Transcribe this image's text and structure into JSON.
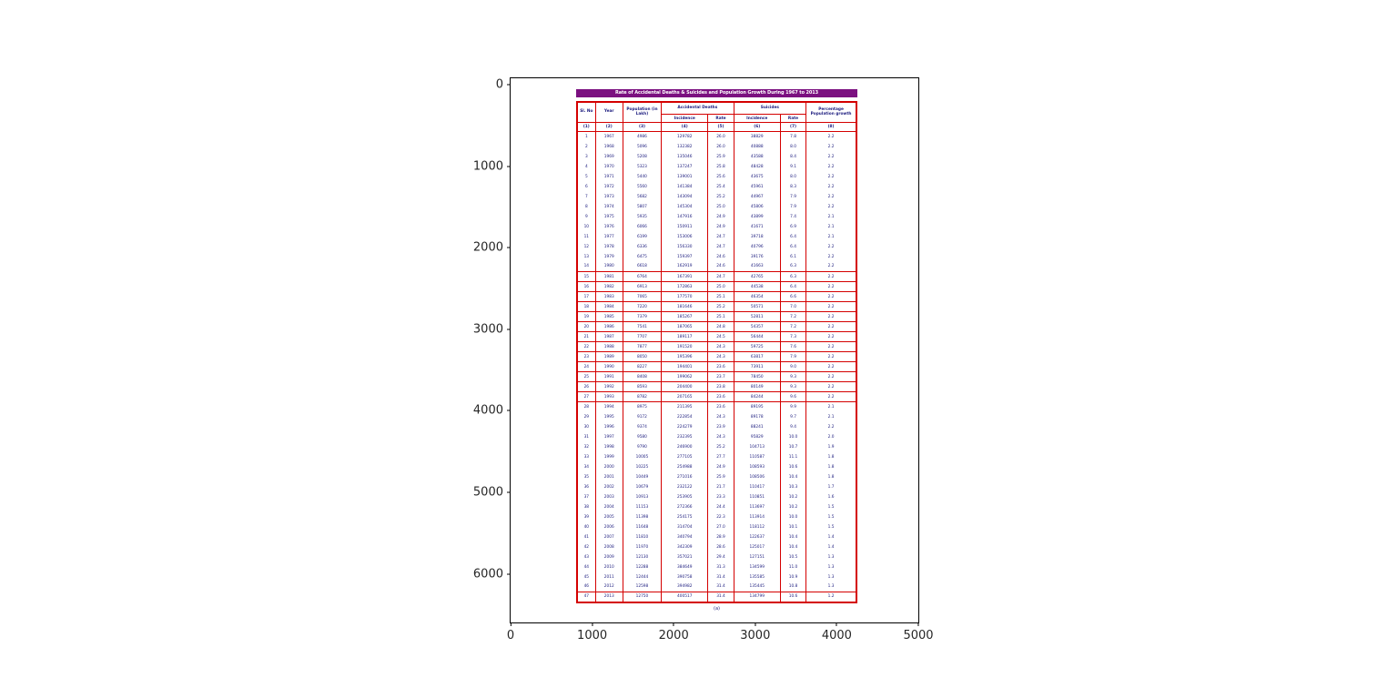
{
  "colors": {
    "table_border": "#d40000",
    "title_bar_bg": "#7b1080",
    "table_text": "#1b1b7e",
    "tick_text": "#262626"
  },
  "figure": {
    "x_ticks": [
      "0",
      "1000",
      "2000",
      "3000",
      "4000",
      "5000"
    ],
    "y_ticks": [
      "0",
      "1000",
      "2000",
      "3000",
      "4000",
      "5000",
      "6000"
    ]
  },
  "chart_data": {
    "type": "table",
    "title": "Rate of Accidental Deaths & Suicides and Population Growth During 1967 to 2013",
    "caption": "(a)",
    "header": {
      "sl_no": "Sl. No",
      "year": "Year",
      "population": "Population (in Lakh)",
      "accidental": "Accidental Deaths",
      "suicides": "Suicides",
      "growth": "Percentage Population growth",
      "incidence": "Incidence",
      "rate": "Rate"
    },
    "col_numbers": [
      "(1)",
      "(2)",
      "(3)",
      "(4)",
      "(5)",
      "(6)",
      "(7)",
      "(8)"
    ],
    "boxed_row_range": [
      15,
      27
    ],
    "x_ticks": [
      "0",
      "1000",
      "2000",
      "3000",
      "4000",
      "5000"
    ],
    "y_ticks": [
      "0",
      "1000",
      "2000",
      "3000",
      "4000",
      "5000",
      "6000"
    ],
    "rows": [
      [
        "1",
        "1967",
        "4986",
        "129782",
        "26.0",
        "38829",
        "7.8",
        "2.2"
      ],
      [
        "2",
        "1968",
        "5096",
        "132382",
        "26.0",
        "40888",
        "8.0",
        "2.2"
      ],
      [
        "3",
        "1969",
        "5208",
        "135046",
        "25.9",
        "43588",
        "8.4",
        "2.2"
      ],
      [
        "4",
        "1970",
        "5323",
        "137247",
        "25.8",
        "48428",
        "9.1",
        "2.2"
      ],
      [
        "5",
        "1971",
        "5440",
        "139001",
        "25.6",
        "43675",
        "8.0",
        "2.2"
      ],
      [
        "6",
        "1972",
        "5560",
        "141384",
        "25.4",
        "45961",
        "8.3",
        "2.2"
      ],
      [
        "7",
        "1973",
        "5682",
        "143094",
        "25.2",
        "44967",
        "7.9",
        "2.2"
      ],
      [
        "8",
        "1974",
        "5807",
        "145304",
        "25.0",
        "45806",
        "7.9",
        "2.2"
      ],
      [
        "9",
        "1975",
        "5935",
        "147916",
        "24.9",
        "43899",
        "7.4",
        "2.1"
      ],
      [
        "10",
        "1976",
        "6066",
        "150911",
        "24.9",
        "41671",
        "6.9",
        "2.1"
      ],
      [
        "11",
        "1977",
        "6199",
        "153006",
        "24.7",
        "39718",
        "6.4",
        "2.1"
      ],
      [
        "12",
        "1978",
        "6336",
        "156330",
        "24.7",
        "40796",
        "6.4",
        "2.2"
      ],
      [
        "13",
        "1979",
        "6475",
        "159397",
        "24.6",
        "39176",
        "6.1",
        "2.2"
      ],
      [
        "14",
        "1980",
        "6618",
        "162919",
        "24.6",
        "41663",
        "6.3",
        "2.2"
      ],
      [
        "15",
        "1981",
        "6764",
        "167391",
        "24.7",
        "42765",
        "6.3",
        "2.2"
      ],
      [
        "16",
        "1982",
        "6913",
        "172863",
        "25.0",
        "44538",
        "6.4",
        "2.2"
      ],
      [
        "17",
        "1983",
        "7065",
        "177570",
        "25.1",
        "46354",
        "6.6",
        "2.2"
      ],
      [
        "18",
        "1984",
        "7220",
        "181646",
        "25.2",
        "50571",
        "7.0",
        "2.2"
      ],
      [
        "19",
        "1985",
        "7379",
        "185267",
        "25.1",
        "52811",
        "7.2",
        "2.2"
      ],
      [
        "20",
        "1986",
        "7541",
        "187065",
        "24.8",
        "54357",
        "7.2",
        "2.2"
      ],
      [
        "21",
        "1987",
        "7707",
        "189117",
        "24.5",
        "56444",
        "7.3",
        "2.2"
      ],
      [
        "22",
        "1988",
        "7877",
        "191520",
        "24.3",
        "59725",
        "7.6",
        "2.2"
      ],
      [
        "23",
        "1989",
        "8050",
        "195396",
        "24.3",
        "63817",
        "7.9",
        "2.2"
      ],
      [
        "24",
        "1990",
        "8227",
        "194401",
        "23.6",
        "73911",
        "9.0",
        "2.2"
      ],
      [
        "25",
        "1991",
        "8408",
        "199062",
        "23.7",
        "78450",
        "9.3",
        "2.2"
      ],
      [
        "26",
        "1992",
        "8593",
        "204400",
        "23.8",
        "80149",
        "9.3",
        "2.2"
      ],
      [
        "27",
        "1993",
        "8782",
        "207165",
        "23.6",
        "84244",
        "9.6",
        "2.2"
      ],
      [
        "28",
        "1994",
        "8975",
        "211395",
        "23.6",
        "89195",
        "9.9",
        "2.1"
      ],
      [
        "29",
        "1995",
        "9172",
        "222854",
        "24.3",
        "89178",
        "9.7",
        "2.1"
      ],
      [
        "30",
        "1996",
        "9374",
        "224279",
        "23.9",
        "88241",
        "9.4",
        "2.2"
      ],
      [
        "31",
        "1997",
        "9580",
        "232395",
        "24.3",
        "95829",
        "10.0",
        "2.0"
      ],
      [
        "32",
        "1998",
        "9790",
        "246900",
        "25.2",
        "104713",
        "10.7",
        "1.9"
      ],
      [
        "33",
        "1999",
        "10005",
        "277105",
        "27.7",
        "110587",
        "11.1",
        "1.8"
      ],
      [
        "34",
        "2000",
        "10225",
        "254988",
        "24.9",
        "108593",
        "10.6",
        "1.8"
      ],
      [
        "35",
        "2001",
        "10449",
        "271016",
        "25.9",
        "108506",
        "10.4",
        "1.8"
      ],
      [
        "36",
        "2002",
        "10679",
        "232122",
        "21.7",
        "110417",
        "10.3",
        "1.7"
      ],
      [
        "37",
        "2003",
        "10913",
        "253905",
        "23.3",
        "110851",
        "10.2",
        "1.6"
      ],
      [
        "38",
        "2004",
        "11153",
        "272366",
        "24.4",
        "113697",
        "10.2",
        "1.5"
      ],
      [
        "39",
        "2005",
        "11398",
        "254175",
        "22.3",
        "113914",
        "10.0",
        "1.5"
      ],
      [
        "40",
        "2006",
        "11648",
        "314704",
        "27.0",
        "118112",
        "10.1",
        "1.5"
      ],
      [
        "41",
        "2007",
        "11810",
        "340794",
        "28.9",
        "122637",
        "10.4",
        "1.4"
      ],
      [
        "42",
        "2008",
        "11970",
        "342309",
        "28.6",
        "125017",
        "10.4",
        "1.4"
      ],
      [
        "43",
        "2009",
        "12130",
        "357021",
        "29.4",
        "127151",
        "10.5",
        "1.3"
      ],
      [
        "44",
        "2010",
        "12288",
        "384649",
        "31.3",
        "134599",
        "11.0",
        "1.3"
      ],
      [
        "45",
        "2011",
        "12444",
        "390758",
        "31.4",
        "135585",
        "10.9",
        "1.3"
      ],
      [
        "46",
        "2012",
        "12598",
        "394982",
        "31.4",
        "135445",
        "10.8",
        "1.3"
      ],
      [
        "47",
        "2013",
        "12750",
        "400517",
        "31.4",
        "134799",
        "10.6",
        "1.2"
      ]
    ]
  }
}
